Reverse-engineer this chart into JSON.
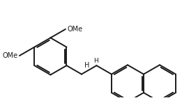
{
  "bg_color": "#ffffff",
  "line_color": "#1a1a1a",
  "line_width": 1.4,
  "text_color": "#1a1a1a",
  "font_size": 7.0,
  "xlim": [
    -0.1,
    2.7
  ],
  "ylim": [
    -0.05,
    1.3
  ],
  "figsize": [
    2.61,
    1.61
  ],
  "dpi": 100
}
